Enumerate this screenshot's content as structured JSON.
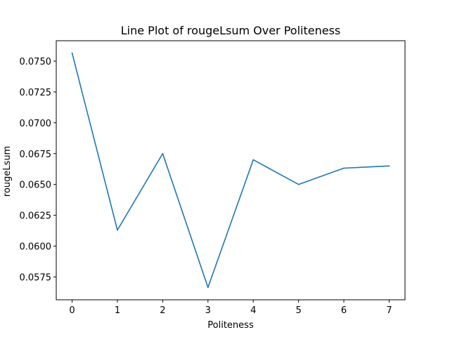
{
  "chart_data": {
    "type": "line",
    "title": "Line Plot of rougeLsum Over Politeness",
    "xlabel": "Politeness",
    "ylabel": "rougeLsum",
    "x": [
      0,
      1,
      2,
      3,
      4,
      5,
      6,
      7
    ],
    "series": [
      {
        "values": [
          0.07565,
          0.0613,
          0.0675,
          0.05665,
          0.067,
          0.065,
          0.06632,
          0.0665
        ],
        "color": "#1f77b4"
      }
    ],
    "xlim": [
      -0.35,
      7.35
    ],
    "ylim": [
      0.05565,
      0.07665
    ],
    "xticks": [
      "0",
      "1",
      "2",
      "3",
      "4",
      "5",
      "6",
      "7"
    ],
    "yticks": [
      "0.0575",
      "0.0600",
      "0.0625",
      "0.0650",
      "0.0675",
      "0.0700",
      "0.0725",
      "0.0750"
    ],
    "grid": false,
    "legend": "none"
  }
}
